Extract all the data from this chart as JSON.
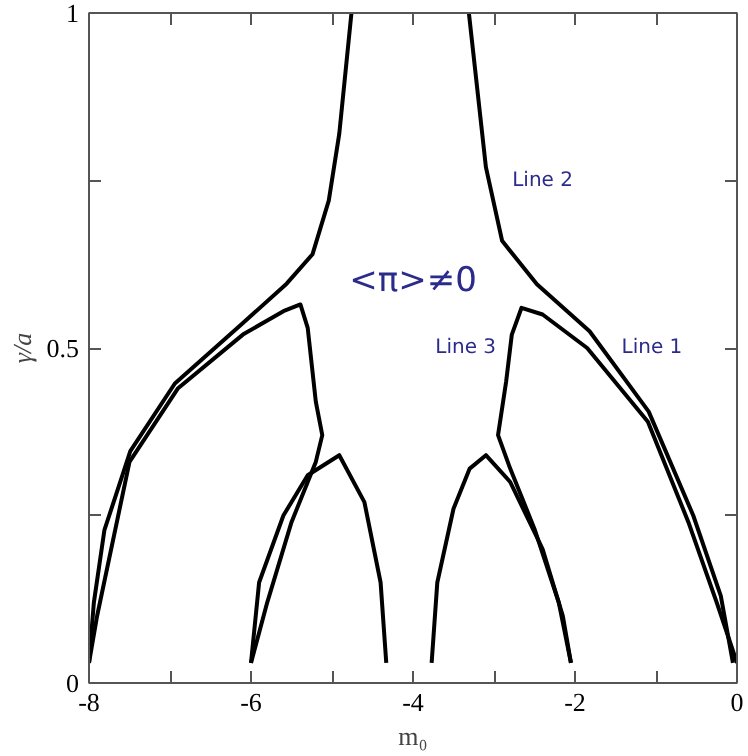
{
  "chart_data": {
    "type": "line",
    "xlabel": "m₀",
    "ylabel": "γ/a",
    "xlim": [
      -8,
      0
    ],
    "ylim": [
      0,
      1
    ],
    "xticks": [
      -8,
      {
        "value": -7,
        "label": null
      },
      -6,
      {
        "value": -5,
        "label": null
      },
      -4,
      {
        "value": -3,
        "label": null
      },
      -2,
      {
        "value": -1,
        "label": null
      },
      0
    ],
    "yticks": [
      0,
      {
        "value": 0.25,
        "label": null
      },
      0.5,
      {
        "value": 0.75,
        "label": null
      },
      1
    ],
    "grid": false,
    "marker": "none",
    "line_style": "solid",
    "series": [
      {
        "color": "#000000",
        "x": [
          -4.76,
          -4.91,
          -5.04,
          -5.24,
          -5.56,
          -6.12,
          -6.94,
          -7.49,
          -7.81,
          -7.94,
          -8.0
        ],
        "values": [
          1.0,
          0.82,
          0.72,
          0.64,
          0.596,
          0.535,
          0.447,
          0.346,
          0.228,
          0.12,
          0.03
        ]
      },
      {
        "color": "#000000",
        "x": [
          -3.31,
          -3.1,
          -2.9,
          -2.47,
          -1.82,
          -1.09,
          -0.54,
          -0.2,
          -0.05
        ],
        "values": [
          1.0,
          0.77,
          0.66,
          0.595,
          0.525,
          0.405,
          0.25,
          0.13,
          0.03
        ]
      },
      {
        "color": "#000000",
        "x": [
          -8.0,
          -7.9,
          -7.5,
          -6.9,
          -6.1,
          -5.6,
          -5.39,
          -5.3,
          -5.2,
          -5.12,
          -5.2,
          -5.5,
          -5.8,
          -6.0
        ],
        "values": [
          0.03,
          0.1,
          0.33,
          0.44,
          0.52,
          0.555,
          0.565,
          0.53,
          0.42,
          0.37,
          0.33,
          0.24,
          0.12,
          0.03
        ]
      },
      {
        "color": "#000000",
        "x": [
          0.0,
          -0.25,
          -0.6,
          -1.1,
          -1.85,
          -2.4,
          -2.66,
          -2.78,
          -2.85,
          -2.95,
          -2.8,
          -2.5,
          -2.2,
          -2.05
        ],
        "values": [
          0.03,
          0.12,
          0.24,
          0.39,
          0.5,
          0.55,
          0.56,
          0.52,
          0.45,
          0.37,
          0.32,
          0.23,
          0.12,
          0.03
        ]
      },
      {
        "color": "#000000",
        "x": [
          -6.0,
          -5.9,
          -5.6,
          -5.3,
          -4.91,
          -4.6,
          -4.4,
          -4.33
        ],
        "values": [
          0.03,
          0.15,
          0.25,
          0.31,
          0.34,
          0.27,
          0.15,
          0.03
        ]
      },
      {
        "color": "#000000",
        "x": [
          -3.77,
          -3.7,
          -3.5,
          -3.3,
          -3.1,
          -2.8,
          -2.4,
          -2.15,
          -2.05
        ],
        "values": [
          0.03,
          0.15,
          0.26,
          0.32,
          0.34,
          0.3,
          0.2,
          0.1,
          0.03
        ]
      }
    ],
    "annotations": [
      "<π>≠0",
      "Line 2",
      "Line 3",
      "Line 1"
    ]
  }
}
